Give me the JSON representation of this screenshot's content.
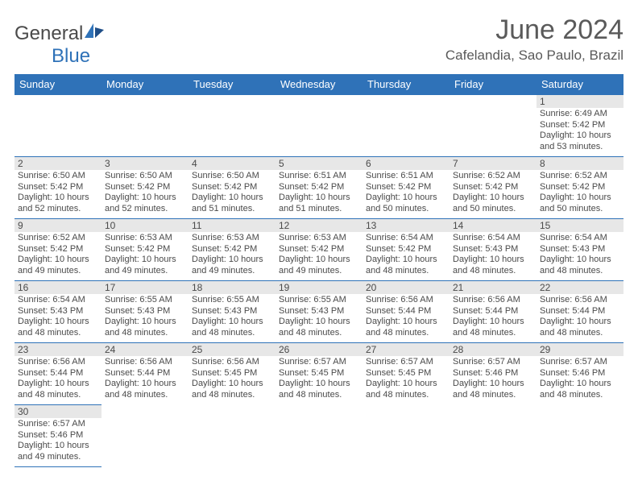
{
  "logo": {
    "text1": "General",
    "text2": "Blue"
  },
  "title": "June 2024",
  "location": "Cafelandia, Sao Paulo, Brazil",
  "colors": {
    "header_bg": "#2f72b8",
    "header_text": "#ffffff",
    "daynum_bg": "#e7e7e7",
    "border": "#2f72b8",
    "text": "#4a4a4a",
    "background": "#ffffff"
  },
  "day_headers": [
    "Sunday",
    "Monday",
    "Tuesday",
    "Wednesday",
    "Thursday",
    "Friday",
    "Saturday"
  ],
  "weeks": [
    [
      null,
      null,
      null,
      null,
      null,
      null,
      {
        "n": "1",
        "rise": "6:49 AM",
        "set": "5:42 PM",
        "dl": "10 hours and 53 minutes."
      }
    ],
    [
      {
        "n": "2",
        "rise": "6:50 AM",
        "set": "5:42 PM",
        "dl": "10 hours and 52 minutes."
      },
      {
        "n": "3",
        "rise": "6:50 AM",
        "set": "5:42 PM",
        "dl": "10 hours and 52 minutes."
      },
      {
        "n": "4",
        "rise": "6:50 AM",
        "set": "5:42 PM",
        "dl": "10 hours and 51 minutes."
      },
      {
        "n": "5",
        "rise": "6:51 AM",
        "set": "5:42 PM",
        "dl": "10 hours and 51 minutes."
      },
      {
        "n": "6",
        "rise": "6:51 AM",
        "set": "5:42 PM",
        "dl": "10 hours and 50 minutes."
      },
      {
        "n": "7",
        "rise": "6:52 AM",
        "set": "5:42 PM",
        "dl": "10 hours and 50 minutes."
      },
      {
        "n": "8",
        "rise": "6:52 AM",
        "set": "5:42 PM",
        "dl": "10 hours and 50 minutes."
      }
    ],
    [
      {
        "n": "9",
        "rise": "6:52 AM",
        "set": "5:42 PM",
        "dl": "10 hours and 49 minutes."
      },
      {
        "n": "10",
        "rise": "6:53 AM",
        "set": "5:42 PM",
        "dl": "10 hours and 49 minutes."
      },
      {
        "n": "11",
        "rise": "6:53 AM",
        "set": "5:42 PM",
        "dl": "10 hours and 49 minutes."
      },
      {
        "n": "12",
        "rise": "6:53 AM",
        "set": "5:42 PM",
        "dl": "10 hours and 49 minutes."
      },
      {
        "n": "13",
        "rise": "6:54 AM",
        "set": "5:42 PM",
        "dl": "10 hours and 48 minutes."
      },
      {
        "n": "14",
        "rise": "6:54 AM",
        "set": "5:43 PM",
        "dl": "10 hours and 48 minutes."
      },
      {
        "n": "15",
        "rise": "6:54 AM",
        "set": "5:43 PM",
        "dl": "10 hours and 48 minutes."
      }
    ],
    [
      {
        "n": "16",
        "rise": "6:54 AM",
        "set": "5:43 PM",
        "dl": "10 hours and 48 minutes."
      },
      {
        "n": "17",
        "rise": "6:55 AM",
        "set": "5:43 PM",
        "dl": "10 hours and 48 minutes."
      },
      {
        "n": "18",
        "rise": "6:55 AM",
        "set": "5:43 PM",
        "dl": "10 hours and 48 minutes."
      },
      {
        "n": "19",
        "rise": "6:55 AM",
        "set": "5:43 PM",
        "dl": "10 hours and 48 minutes."
      },
      {
        "n": "20",
        "rise": "6:56 AM",
        "set": "5:44 PM",
        "dl": "10 hours and 48 minutes."
      },
      {
        "n": "21",
        "rise": "6:56 AM",
        "set": "5:44 PM",
        "dl": "10 hours and 48 minutes."
      },
      {
        "n": "22",
        "rise": "6:56 AM",
        "set": "5:44 PM",
        "dl": "10 hours and 48 minutes."
      }
    ],
    [
      {
        "n": "23",
        "rise": "6:56 AM",
        "set": "5:44 PM",
        "dl": "10 hours and 48 minutes."
      },
      {
        "n": "24",
        "rise": "6:56 AM",
        "set": "5:44 PM",
        "dl": "10 hours and 48 minutes."
      },
      {
        "n": "25",
        "rise": "6:56 AM",
        "set": "5:45 PM",
        "dl": "10 hours and 48 minutes."
      },
      {
        "n": "26",
        "rise": "6:57 AM",
        "set": "5:45 PM",
        "dl": "10 hours and 48 minutes."
      },
      {
        "n": "27",
        "rise": "6:57 AM",
        "set": "5:45 PM",
        "dl": "10 hours and 48 minutes."
      },
      {
        "n": "28",
        "rise": "6:57 AM",
        "set": "5:46 PM",
        "dl": "10 hours and 48 minutes."
      },
      {
        "n": "29",
        "rise": "6:57 AM",
        "set": "5:46 PM",
        "dl": "10 hours and 48 minutes."
      }
    ],
    [
      {
        "n": "30",
        "rise": "6:57 AM",
        "set": "5:46 PM",
        "dl": "10 hours and 49 minutes."
      },
      null,
      null,
      null,
      null,
      null,
      null
    ]
  ],
  "labels": {
    "sunrise": "Sunrise: ",
    "sunset": "Sunset: ",
    "daylight": "Daylight: "
  }
}
